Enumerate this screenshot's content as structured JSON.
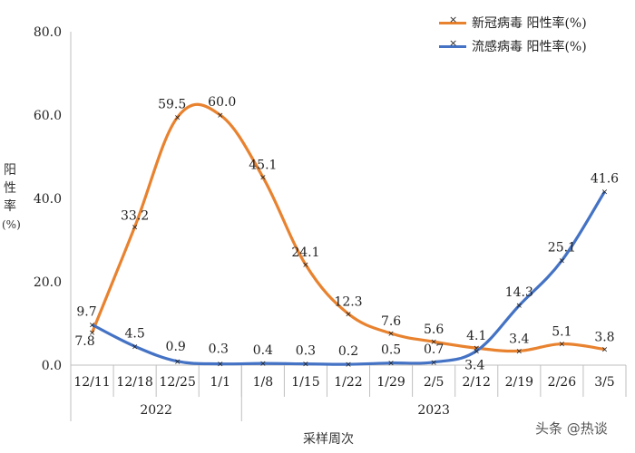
{
  "chart_data": {
    "type": "line",
    "categories": [
      "12/11",
      "12/18",
      "12/25",
      "1/1",
      "1/8",
      "1/15",
      "1/22",
      "1/29",
      "2/5",
      "2/12",
      "2/19",
      "2/26",
      "3/5"
    ],
    "year_groups": [
      {
        "label": "2022",
        "start": 0,
        "end": 3
      },
      {
        "label": "2023",
        "start": 4,
        "end": 12
      }
    ],
    "series": [
      {
        "name": "新冠病毒 阳性率(%)",
        "color": "#e8822f",
        "values": [
          7.8,
          33.2,
          59.5,
          60.0,
          45.1,
          24.1,
          12.3,
          7.6,
          5.6,
          4.1,
          3.4,
          5.1,
          3.8
        ]
      },
      {
        "name": "流感病毒 阳性率(%)",
        "color": "#4472c4",
        "values": [
          9.7,
          4.5,
          0.9,
          0.3,
          0.4,
          0.3,
          0.2,
          0.5,
          0.7,
          3.4,
          14.3,
          25.1,
          41.6
        ]
      }
    ],
    "yticks": [
      "0.0",
      "20.0",
      "40.0",
      "60.0",
      "80.0"
    ],
    "ylim": [
      0,
      80
    ],
    "ylabel": "阳性率(%)",
    "xlabel": "采样周次"
  },
  "ylabel_chars": [
    "阳",
    "性",
    "率",
    "(%)"
  ],
  "watermark": "头条 @热谈"
}
